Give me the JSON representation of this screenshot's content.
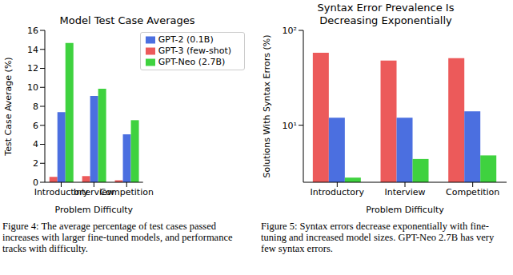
{
  "chart_data": [
    {
      "type": "bar",
      "title": "Model Test Case Averages",
      "caption": "Figure 4: The average percentage of test cases passed increases with larger fine-tuned models, and performance tracks with difficulty.",
      "x_label": "Problem Difficulty",
      "y_label": "Test Case Average (%)",
      "categories": [
        "Introductory",
        "Interview",
        "Competition"
      ],
      "series": [
        {
          "name": "GPT-3 (few-shot)",
          "color": "#ec5a5a",
          "values": [
            0.57,
            0.65,
            0.21
          ]
        },
        {
          "name": "GPT-2 (0.1B)",
          "color": "#4b6fe0",
          "values": [
            7.4,
            9.1,
            5.05
          ]
        },
        {
          "name": "GPT-Neo (2.7B)",
          "color": "#3fd23f",
          "values": [
            14.68,
            9.85,
            6.54
          ]
        }
      ],
      "ylim": [
        0,
        16
      ],
      "yticks": [
        0,
        2,
        4,
        6,
        8,
        10,
        12,
        14,
        16
      ],
      "grid": false,
      "legend": "upper right"
    },
    {
      "type": "bar",
      "title": "Syntax Error Prevalence Is Decreasing Exponentially",
      "caption": "Figure 5: Syntax errors decrease exponentially with fine-tuning and increased model sizes. GPT-Neo 2.7B has very few syntax errors.",
      "x_label": "Problem Difficulty",
      "y_label": "Solutions With Syntax Errors (%)",
      "categories": [
        "Introductory",
        "Interview",
        "Competition"
      ],
      "series": [
        {
          "name": "GPT-3 (few-shot)",
          "color": "#ec5a5a",
          "values": [
            58,
            48,
            51
          ]
        },
        {
          "name": "GPT-2 (0.1B)",
          "color": "#4b6fe0",
          "values": [
            12,
            12,
            14
          ]
        },
        {
          "name": "GPT-Neo (2.7B)",
          "color": "#3fd23f",
          "values": [
            2.8,
            4.4,
            4.8
          ]
        }
      ],
      "ylim": [
        2.5,
        100
      ],
      "yticks": [
        {
          "value": 10,
          "label": "10¹"
        },
        {
          "value": 100,
          "label": "10²"
        }
      ],
      "log": "y",
      "grid": false
    }
  ]
}
